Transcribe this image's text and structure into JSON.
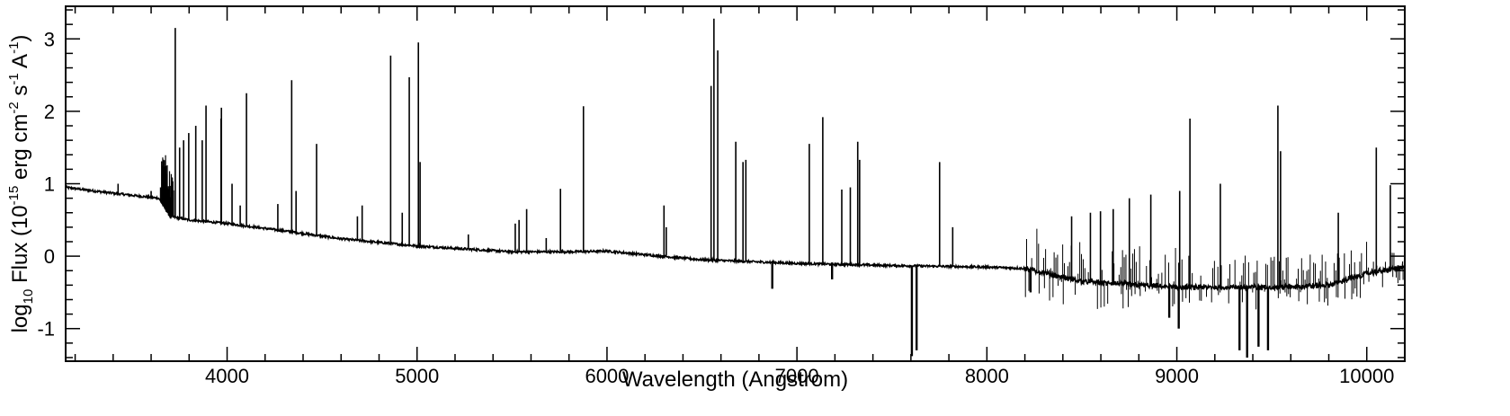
{
  "chart_data": {
    "type": "line",
    "title": "",
    "xlabel": "Wavelength (Angstrom)",
    "ylabel_parts": {
      "pre": "log",
      "base": "10",
      "mid": " Flux (10",
      "exp1": "-15",
      "unit1": " erg cm",
      "exp2": "-2",
      "unit2": " s",
      "exp3": "-1",
      "unit3": " A",
      "exp4": "-1",
      "post": ")"
    },
    "xlim": [
      3150,
      10200
    ],
    "ylim": [
      -1.45,
      3.45
    ],
    "xticks": [
      4000,
      5000,
      6000,
      7000,
      8000,
      9000,
      10000
    ],
    "yticks": [
      -1,
      0,
      1,
      2,
      3
    ],
    "ytick_labels": [
      "-1",
      "0",
      "1",
      "2",
      "3"
    ],
    "grid": false,
    "line_color": "#000000",
    "continuum": [
      [
        3150,
        0.95
      ],
      [
        3300,
        0.9
      ],
      [
        3500,
        0.84
      ],
      [
        3640,
        0.8
      ],
      [
        3700,
        0.55
      ],
      [
        3800,
        0.5
      ],
      [
        4000,
        0.45
      ],
      [
        4300,
        0.35
      ],
      [
        4600,
        0.24
      ],
      [
        5000,
        0.14
      ],
      [
        5500,
        0.06
      ],
      [
        5800,
        0.06
      ],
      [
        6000,
        0.07
      ],
      [
        6200,
        0.02
      ],
      [
        6500,
        -0.05
      ],
      [
        6800,
        -0.08
      ],
      [
        7000,
        -0.1
      ],
      [
        7500,
        -0.13
      ],
      [
        8000,
        -0.15
      ],
      [
        8200,
        -0.17
      ],
      [
        8500,
        -0.35
      ],
      [
        9000,
        -0.43
      ],
      [
        9500,
        -0.43
      ],
      [
        9800,
        -0.4
      ],
      [
        10000,
        -0.24
      ],
      [
        10200,
        -0.15
      ]
    ],
    "emission_lines": [
      [
        3426,
        1.0
      ],
      [
        3600,
        0.9
      ],
      [
        3650,
        0.95
      ],
      [
        3727,
        3.15
      ],
      [
        3750,
        1.5
      ],
      [
        3771,
        1.6
      ],
      [
        3798,
        1.7
      ],
      [
        3835,
        1.8
      ],
      [
        3869,
        1.6
      ],
      [
        3889,
        2.08
      ],
      [
        3968,
        1.9
      ],
      [
        3970,
        2.05
      ],
      [
        4026,
        1.0
      ],
      [
        4069,
        0.7
      ],
      [
        4102,
        2.25
      ],
      [
        4267,
        0.72
      ],
      [
        4340,
        2.43
      ],
      [
        4363,
        0.9
      ],
      [
        4471,
        1.55
      ],
      [
        4686,
        0.55
      ],
      [
        4711,
        0.7
      ],
      [
        4861,
        2.77
      ],
      [
        4922,
        0.6
      ],
      [
        4959,
        2.47
      ],
      [
        5007,
        2.95
      ],
      [
        5016,
        1.3
      ],
      [
        5270,
        0.3
      ],
      [
        5517,
        0.45
      ],
      [
        5537,
        0.5
      ],
      [
        5577,
        0.65
      ],
      [
        5680,
        0.25
      ],
      [
        5755,
        0.93
      ],
      [
        5876,
        2.07
      ],
      [
        6300,
        0.7
      ],
      [
        6312,
        0.4
      ],
      [
        6548,
        2.35
      ],
      [
        6563,
        3.28
      ],
      [
        6583,
        2.84
      ],
      [
        6678,
        1.58
      ],
      [
        6716,
        1.3
      ],
      [
        6731,
        1.33
      ],
      [
        7065,
        1.55
      ],
      [
        7136,
        1.92
      ],
      [
        7236,
        0.92
      ],
      [
        7281,
        0.95
      ],
      [
        7320,
        1.58
      ],
      [
        7330,
        1.33
      ],
      [
        7751,
        1.3
      ],
      [
        7820,
        0.4
      ],
      [
        8446,
        0.55
      ],
      [
        8545,
        0.6
      ],
      [
        8598,
        0.62
      ],
      [
        8665,
        0.65
      ],
      [
        8750,
        0.8
      ],
      [
        8863,
        0.85
      ],
      [
        9015,
        0.9
      ],
      [
        9069,
        1.9
      ],
      [
        9229,
        1.0
      ],
      [
        9532,
        2.08
      ],
      [
        9546,
        1.45
      ],
      [
        9850,
        0.6
      ],
      [
        10050,
        1.5
      ],
      [
        10124,
        0.98
      ]
    ],
    "absorption_bands": [
      [
        6870,
        -0.45
      ],
      [
        7185,
        -0.32
      ],
      [
        7605,
        -1.38
      ],
      [
        7630,
        -1.3
      ],
      [
        8230,
        -0.5
      ],
      [
        8960,
        -0.85
      ],
      [
        9010,
        -1.0
      ],
      [
        9330,
        -1.3
      ],
      [
        9370,
        -1.4
      ],
      [
        9430,
        -1.25
      ],
      [
        9480,
        -1.3
      ]
    ],
    "noise_regions": [
      [
        8200,
        8300,
        0.65
      ],
      [
        8300,
        9000,
        0.55
      ],
      [
        9000,
        10200,
        0.45
      ]
    ]
  }
}
